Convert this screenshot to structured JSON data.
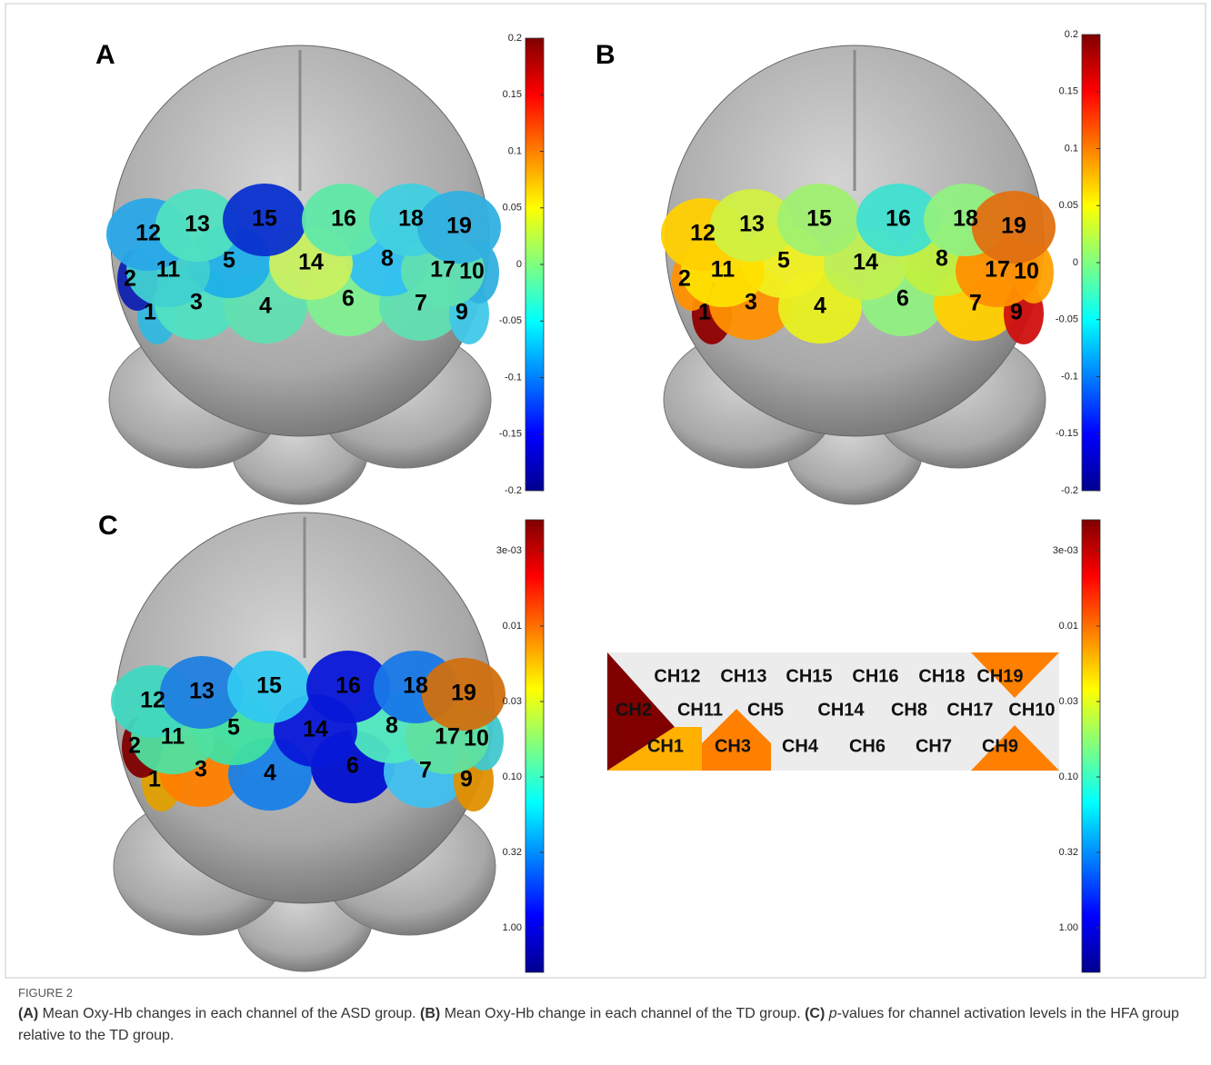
{
  "panels": [
    {
      "letter": "A",
      "colorbar_ticks": [
        "0.2",
        "0.15",
        "0.1",
        "0.05",
        "0",
        "-0.05",
        "-0.1",
        "-0.15",
        "-0.2"
      ],
      "channels": [
        {
          "label": "1",
          "color": "#33b8e0"
        },
        {
          "label": "2",
          "color": "#1020b0"
        },
        {
          "label": "3",
          "color": "#50e0c0"
        },
        {
          "label": "4",
          "color": "#60e0b0"
        },
        {
          "label": "5",
          "color": "#20b0e8"
        },
        {
          "label": "6",
          "color": "#80f090"
        },
        {
          "label": "7",
          "color": "#60e0b0"
        },
        {
          "label": "8",
          "color": "#30c0f0"
        },
        {
          "label": "9",
          "color": "#40c8e8"
        },
        {
          "label": "10",
          "color": "#30b0e0"
        },
        {
          "label": "11",
          "color": "#40d0d0"
        },
        {
          "label": "12",
          "color": "#2aa8e8"
        },
        {
          "label": "13",
          "color": "#50e0c0"
        },
        {
          "label": "14",
          "color": "#c8f060"
        },
        {
          "label": "15",
          "color": "#0a30d0"
        },
        {
          "label": "16",
          "color": "#60e8a8"
        },
        {
          "label": "17",
          "color": "#60e0b0"
        },
        {
          "label": "18",
          "color": "#40d0e0"
        },
        {
          "label": "19",
          "color": "#30b0e0"
        }
      ]
    },
    {
      "letter": "B",
      "colorbar_ticks": [
        "0.2",
        "0.15",
        "0.1",
        "0.05",
        "0",
        "-0.05",
        "-0.1",
        "-0.15",
        "-0.2"
      ],
      "channels": [
        {
          "label": "1",
          "color": "#900000"
        },
        {
          "label": "2",
          "color": "#ff9000"
        },
        {
          "label": "3",
          "color": "#ff9000"
        },
        {
          "label": "4",
          "color": "#e8f020"
        },
        {
          "label": "5",
          "color": "#f0f020"
        },
        {
          "label": "6",
          "color": "#90f080"
        },
        {
          "label": "7",
          "color": "#ffd000"
        },
        {
          "label": "8",
          "color": "#c0f040"
        },
        {
          "label": "9",
          "color": "#d01010"
        },
        {
          "label": "10",
          "color": "#ffa000"
        },
        {
          "label": "11",
          "color": "#ffe000"
        },
        {
          "label": "12",
          "color": "#ffd000"
        },
        {
          "label": "13",
          "color": "#d0f040"
        },
        {
          "label": "14",
          "color": "#c0f050"
        },
        {
          "label": "15",
          "color": "#a0f070"
        },
        {
          "label": "16",
          "color": "#40e0d0"
        },
        {
          "label": "17",
          "color": "#ff9000"
        },
        {
          "label": "18",
          "color": "#90f080"
        },
        {
          "label": "19",
          "color": "#e07010"
        }
      ]
    },
    {
      "letter": "C",
      "colorbar_ticks": [
        "3e-03",
        "0.01",
        "0.03",
        "0.10",
        "0.32",
        "1.00"
      ],
      "channels": [
        {
          "label": "1",
          "color": "#e0a000"
        },
        {
          "label": "2",
          "color": "#800000"
        },
        {
          "label": "3",
          "color": "#ff8000"
        },
        {
          "label": "4",
          "color": "#1880e8"
        },
        {
          "label": "5",
          "color": "#40e0a0"
        },
        {
          "label": "6",
          "color": "#0010d0"
        },
        {
          "label": "7",
          "color": "#40c0f0"
        },
        {
          "label": "8",
          "color": "#50e8c0"
        },
        {
          "label": "9",
          "color": "#e09000"
        },
        {
          "label": "10",
          "color": "#40c8d0"
        },
        {
          "label": "11",
          "color": "#50e0a0"
        },
        {
          "label": "12",
          "color": "#40d8c0"
        },
        {
          "label": "13",
          "color": "#2080e0"
        },
        {
          "label": "14",
          "color": "#0818d8"
        },
        {
          "label": "15",
          "color": "#30c8f0"
        },
        {
          "label": "16",
          "color": "#0818d8"
        },
        {
          "label": "17",
          "color": "#60e0a0"
        },
        {
          "label": "18",
          "color": "#1878e8"
        },
        {
          "label": "19",
          "color": "#d07010"
        }
      ]
    }
  ],
  "channel_map": {
    "colorbar_ticks": [
      "3e-03",
      "0.01",
      "0.03",
      "0.10",
      "0.32",
      "1.00"
    ],
    "rows": [
      [
        "CH12",
        "CH13",
        "CH15",
        "CH16",
        "CH18",
        "CH19"
      ],
      [
        "CH2",
        "CH11",
        "CH5",
        "CH14",
        "CH8",
        "CH17",
        "CH10"
      ],
      [
        "CH1",
        "CH3",
        "CH4",
        "CH6",
        "CH7",
        "CH9"
      ]
    ]
  },
  "caption": {
    "figure": "FIGURE 2",
    "parts": [
      {
        "label": "(A)",
        "text": " Mean Oxy-Hb changes in each channel of the ASD group. "
      },
      {
        "label": "(B)",
        "text": " Mean Oxy-Hb change in each channel of the TD group. "
      },
      {
        "label": "(C)",
        "italic": "p",
        "text": "-values for channel activation levels in the HFA group relative to the TD group."
      }
    ]
  }
}
